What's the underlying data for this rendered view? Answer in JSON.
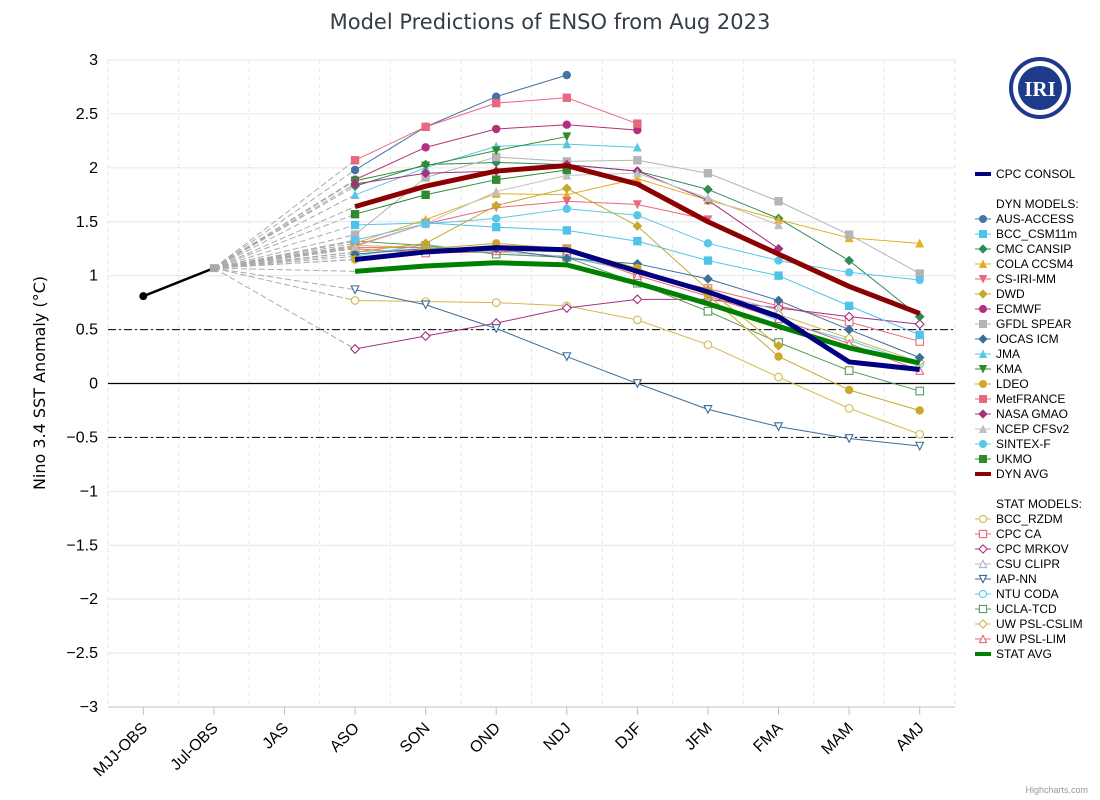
{
  "credit": "Highcharts.com",
  "logo_text": "IRI",
  "chart_data": {
    "type": "line",
    "title": "Model Predictions of ENSO from Aug 2023",
    "ylabel": "Nino 3.4 SST Anomaly (°C)",
    "xlabel": "",
    "categories": [
      "MJJ-OBS",
      "Jul-OBS",
      "JAS",
      "ASO",
      "SON",
      "OND",
      "NDJ",
      "DJF",
      "JFM",
      "FMA",
      "MAM",
      "AMJ"
    ],
    "yticks": [
      "3",
      "2.5",
      "2",
      "1.5",
      "1",
      "0.5",
      "0",
      "−0.5",
      "−1",
      "−1.5",
      "−2",
      "−2.5",
      "−3"
    ],
    "ylim": [
      -3,
      3
    ],
    "reference_lines": [
      0.5,
      -0.5
    ],
    "observed": {
      "values": [
        0.81,
        1.07
      ]
    },
    "legend_headers": {
      "dyn": "DYN MODELS:",
      "stat": "STAT MODELS:"
    },
    "series": [
      {
        "name": "CPC CONSOL",
        "group": "consol",
        "color": "#000080",
        "marker": "none",
        "values": [
          null,
          null,
          null,
          1.15,
          1.22,
          1.26,
          1.24,
          1.04,
          0.85,
          0.62,
          0.2,
          0.13
        ]
      },
      {
        "name": "AUS-ACCESS",
        "group": "dyn",
        "color": "#4572a7",
        "marker": "circle",
        "filled": true,
        "values": [
          null,
          null,
          null,
          1.98,
          2.38,
          2.66,
          2.86,
          null,
          null,
          null,
          null,
          null
        ]
      },
      {
        "name": "BCC_CSM11m",
        "group": "dyn",
        "color": "#4fc3e8",
        "marker": "square",
        "filled": true,
        "values": [
          null,
          null,
          null,
          1.47,
          1.49,
          1.45,
          1.42,
          1.32,
          1.14,
          1.0,
          0.72,
          0.45
        ]
      },
      {
        "name": "CMC CANSIP",
        "group": "dyn",
        "color": "#2e8b57",
        "marker": "diamond",
        "filled": true,
        "values": [
          null,
          null,
          null,
          1.83,
          2.03,
          2.05,
          2.03,
          1.97,
          1.8,
          1.53,
          1.14,
          0.62
        ]
      },
      {
        "name": "COLA CCSM4",
        "group": "dyn",
        "color": "#e3b021",
        "marker": "triangle",
        "filled": true,
        "values": [
          null,
          null,
          null,
          1.3,
          1.52,
          1.76,
          1.75,
          1.9,
          1.7,
          1.52,
          1.35,
          1.3
        ]
      },
      {
        "name": "CS-IRI-MM",
        "group": "dyn",
        "color": "#e8697d",
        "marker": "triangle-down",
        "filled": true,
        "values": [
          null,
          null,
          null,
          1.28,
          1.48,
          1.63,
          1.69,
          1.66,
          1.52,
          null,
          null,
          null
        ]
      },
      {
        "name": "DWD",
        "group": "dyn",
        "color": "#c8a82a",
        "marker": "diamond",
        "filled": true,
        "values": [
          null,
          null,
          null,
          1.22,
          1.3,
          1.65,
          1.81,
          1.46,
          0.87,
          0.35,
          null,
          null
        ]
      },
      {
        "name": "ECMWF",
        "group": "dyn",
        "color": "#b5307c",
        "marker": "circle",
        "filled": true,
        "values": [
          null,
          null,
          null,
          1.89,
          2.19,
          2.36,
          2.4,
          2.35,
          null,
          null,
          null,
          null
        ]
      },
      {
        "name": "GFDL SPEAR",
        "group": "dyn",
        "color": "#b5b5b5",
        "marker": "square",
        "filled": true,
        "values": [
          null,
          null,
          null,
          1.38,
          1.91,
          2.1,
          2.06,
          2.07,
          1.95,
          1.69,
          1.38,
          1.02
        ]
      },
      {
        "name": "IOCAS ICM",
        "group": "dyn",
        "color": "#3d6d99",
        "marker": "diamond",
        "filled": true,
        "values": [
          null,
          null,
          null,
          1.2,
          1.25,
          1.25,
          1.16,
          1.11,
          0.97,
          0.77,
          0.5,
          0.24
        ]
      },
      {
        "name": "JMA",
        "group": "dyn",
        "color": "#5bc6e0",
        "marker": "triangle",
        "filled": true,
        "values": [
          null,
          null,
          null,
          1.75,
          2.0,
          2.2,
          2.22,
          2.19,
          null,
          null,
          null,
          null
        ]
      },
      {
        "name": "KMA",
        "group": "dyn",
        "color": "#2e8b2e",
        "marker": "triangle-down",
        "filled": true,
        "values": [
          null,
          null,
          null,
          1.88,
          2.02,
          2.16,
          2.29,
          null,
          null,
          null,
          null,
          null
        ]
      },
      {
        "name": "LDEO",
        "group": "dyn",
        "color": "#c9a82a",
        "marker": "circle",
        "filled": true,
        "values": [
          null,
          null,
          null,
          1.15,
          1.25,
          1.3,
          1.25,
          1.07,
          0.82,
          0.25,
          -0.06,
          -0.25
        ]
      },
      {
        "name": "MetFRANCE",
        "group": "dyn",
        "color": "#e8697d",
        "marker": "square",
        "filled": true,
        "values": [
          null,
          null,
          null,
          2.07,
          2.38,
          2.6,
          2.65,
          2.41,
          null,
          null,
          null,
          null
        ]
      },
      {
        "name": "NASA GMAO",
        "group": "dyn",
        "color": "#a5307c",
        "marker": "diamond",
        "filled": true,
        "values": [
          null,
          null,
          null,
          1.85,
          1.95,
          1.97,
          2.03,
          1.97,
          1.7,
          1.25,
          null,
          null
        ]
      },
      {
        "name": "NCEP CFSv2",
        "group": "dyn",
        "color": "#c0c0c0",
        "marker": "triangle",
        "filled": true,
        "values": [
          null,
          null,
          null,
          1.27,
          1.48,
          1.78,
          1.93,
          1.95,
          1.72,
          1.47,
          null,
          null
        ]
      },
      {
        "name": "SINTEX-F",
        "group": "dyn",
        "color": "#5bc6e8",
        "marker": "circle",
        "filled": true,
        "values": [
          null,
          null,
          null,
          1.33,
          1.48,
          1.53,
          1.62,
          1.56,
          1.3,
          1.14,
          1.03,
          0.96
        ]
      },
      {
        "name": "UKMO",
        "group": "dyn",
        "color": "#2e8b2e",
        "marker": "square",
        "filled": true,
        "values": [
          null,
          null,
          null,
          1.57,
          1.75,
          1.89,
          1.98,
          null,
          null,
          null,
          null,
          null
        ]
      },
      {
        "name": "DYN AVG",
        "group": "dyn-avg",
        "color": "#8b0000",
        "marker": "none",
        "values": [
          null,
          null,
          null,
          1.64,
          1.83,
          1.97,
          2.02,
          1.85,
          1.5,
          1.2,
          0.9,
          0.65
        ]
      },
      {
        "name": "BCC_RZDM",
        "group": "stat",
        "color": "#d4b84a",
        "marker": "circle",
        "filled": false,
        "values": [
          null,
          null,
          null,
          0.77,
          0.76,
          0.75,
          0.72,
          0.59,
          0.36,
          0.06,
          -0.23,
          -0.47
        ]
      },
      {
        "name": "CPC CA",
        "group": "stat",
        "color": "#e8697d",
        "marker": "square",
        "filled": false,
        "values": [
          null,
          null,
          null,
          1.25,
          1.21,
          1.22,
          1.25,
          1.02,
          0.88,
          0.72,
          0.57,
          0.39
        ]
      },
      {
        "name": "CPC MRKOV",
        "group": "stat",
        "color": "#a5307c",
        "marker": "diamond",
        "filled": false,
        "values": [
          null,
          null,
          null,
          0.32,
          0.44,
          0.56,
          0.7,
          0.78,
          0.78,
          0.7,
          0.62,
          0.55
        ]
      },
      {
        "name": "CSU CLIPR",
        "group": "stat",
        "color": "#b5b5d0",
        "marker": "triangle",
        "filled": false,
        "values": [
          null,
          null,
          null,
          1.22,
          1.25,
          1.22,
          1.18,
          1.05,
          0.85,
          0.68,
          null,
          null
        ]
      },
      {
        "name": "IAP-NN",
        "group": "stat",
        "color": "#3d6d99",
        "marker": "triangle-down",
        "filled": false,
        "values": [
          null,
          null,
          null,
          0.87,
          0.73,
          0.51,
          0.25,
          0.0,
          -0.24,
          -0.4,
          -0.51,
          -0.58
        ]
      },
      {
        "name": "NTU CODA",
        "group": "stat",
        "color": "#5bc6e8",
        "marker": "circle",
        "filled": false,
        "values": [
          null,
          null,
          null,
          1.18,
          1.29,
          1.2,
          1.17,
          1.04,
          0.86,
          0.58,
          0.4,
          0.18
        ]
      },
      {
        "name": "UCLA-TCD",
        "group": "stat",
        "color": "#5c9a5c",
        "marker": "square",
        "filled": false,
        "values": [
          null,
          null,
          null,
          1.32,
          1.28,
          1.2,
          1.17,
          0.93,
          0.67,
          0.38,
          0.12,
          -0.07
        ]
      },
      {
        "name": "UW PSL-CSLIM",
        "group": "stat",
        "color": "#c9b84a",
        "marker": "diamond",
        "filled": false,
        "values": [
          null,
          null,
          null,
          1.28,
          1.26,
          1.24,
          1.22,
          1.04,
          0.86,
          0.64,
          0.42,
          0.2
        ]
      },
      {
        "name": "UW PSL-LIM",
        "group": "stat",
        "color": "#e8697d",
        "marker": "triangle",
        "filled": false,
        "values": [
          null,
          null,
          null,
          1.26,
          1.26,
          1.23,
          1.23,
          1.0,
          0.81,
          0.6,
          0.37,
          0.12
        ]
      },
      {
        "name": "STAT AVG",
        "group": "stat-avg",
        "color": "#008000",
        "marker": "none",
        "values": [
          null,
          null,
          null,
          1.04,
          1.09,
          1.12,
          1.1,
          0.93,
          0.74,
          0.53,
          0.33,
          0.19
        ]
      }
    ]
  }
}
